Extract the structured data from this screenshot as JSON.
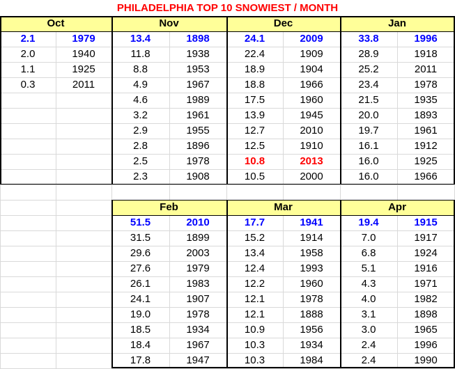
{
  "title": "PHILADELPHIA TOP 10 SNOWIEST / MONTH",
  "colors": {
    "header_fill": "#ffff99",
    "highlight_first": "#0000ff",
    "highlight_recent": "#ff0000",
    "title": "#ff0000"
  },
  "months": [
    {
      "name": "Oct",
      "rows": [
        {
          "amt": "2.1",
          "yr": "1979",
          "style": "blue"
        },
        {
          "amt": "2.0",
          "yr": "1940"
        },
        {
          "amt": "1.1",
          "yr": "1925"
        },
        {
          "amt": "0.3",
          "yr": "2011"
        }
      ]
    },
    {
      "name": "Nov",
      "rows": [
        {
          "amt": "13.4",
          "yr": "1898",
          "style": "blue"
        },
        {
          "amt": "11.8",
          "yr": "1938"
        },
        {
          "amt": "8.8",
          "yr": "1953"
        },
        {
          "amt": "4.9",
          "yr": "1967"
        },
        {
          "amt": "4.6",
          "yr": "1989"
        },
        {
          "amt": "3.2",
          "yr": "1961"
        },
        {
          "amt": "2.9",
          "yr": "1955"
        },
        {
          "amt": "2.8",
          "yr": "1896"
        },
        {
          "amt": "2.5",
          "yr": "1978"
        },
        {
          "amt": "2.3",
          "yr": "1908"
        }
      ]
    },
    {
      "name": "Dec",
      "rows": [
        {
          "amt": "24.1",
          "yr": "2009",
          "style": "blue"
        },
        {
          "amt": "22.4",
          "yr": "1909"
        },
        {
          "amt": "18.9",
          "yr": "1904"
        },
        {
          "amt": "18.8",
          "yr": "1966"
        },
        {
          "amt": "17.5",
          "yr": "1960"
        },
        {
          "amt": "13.9",
          "yr": "1945"
        },
        {
          "amt": "12.7",
          "yr": "2010"
        },
        {
          "amt": "12.5",
          "yr": "1910"
        },
        {
          "amt": "10.8",
          "yr": "2013",
          "style": "red"
        },
        {
          "amt": "10.5",
          "yr": "2000"
        }
      ]
    },
    {
      "name": "Jan",
      "rows": [
        {
          "amt": "33.8",
          "yr": "1996",
          "style": "blue"
        },
        {
          "amt": "28.9",
          "yr": "1918"
        },
        {
          "amt": "25.2",
          "yr": "2011"
        },
        {
          "amt": "23.4",
          "yr": "1978"
        },
        {
          "amt": "21.5",
          "yr": "1935"
        },
        {
          "amt": "20.0",
          "yr": "1893"
        },
        {
          "amt": "19.7",
          "yr": "1961"
        },
        {
          "amt": "16.1",
          "yr": "1912"
        },
        {
          "amt": "16.0",
          "yr": "1925"
        },
        {
          "amt": "16.0",
          "yr": "1966"
        }
      ]
    },
    {
      "name": "Feb",
      "rows": [
        {
          "amt": "51.5",
          "yr": "2010",
          "style": "blue"
        },
        {
          "amt": "31.5",
          "yr": "1899"
        },
        {
          "amt": "29.6",
          "yr": "2003"
        },
        {
          "amt": "27.6",
          "yr": "1979"
        },
        {
          "amt": "26.1",
          "yr": "1983"
        },
        {
          "amt": "24.1",
          "yr": "1907"
        },
        {
          "amt": "19.0",
          "yr": "1978"
        },
        {
          "amt": "18.5",
          "yr": "1934"
        },
        {
          "amt": "18.4",
          "yr": "1967"
        },
        {
          "amt": "17.8",
          "yr": "1947"
        }
      ]
    },
    {
      "name": "Mar",
      "rows": [
        {
          "amt": "17.7",
          "yr": "1941",
          "style": "blue"
        },
        {
          "amt": "15.2",
          "yr": "1914"
        },
        {
          "amt": "13.4",
          "yr": "1958"
        },
        {
          "amt": "12.4",
          "yr": "1993"
        },
        {
          "amt": "12.2",
          "yr": "1960"
        },
        {
          "amt": "12.1",
          "yr": "1978"
        },
        {
          "amt": "12.1",
          "yr": "1888"
        },
        {
          "amt": "10.9",
          "yr": "1956"
        },
        {
          "amt": "10.3",
          "yr": "1934"
        },
        {
          "amt": "10.3",
          "yr": "1984"
        }
      ]
    },
    {
      "name": "Apr",
      "rows": [
        {
          "amt": "19.4",
          "yr": "1915",
          "style": "blue"
        },
        {
          "amt": "7.0",
          "yr": "1917"
        },
        {
          "amt": "6.8",
          "yr": "1924"
        },
        {
          "amt": "5.1",
          "yr": "1916"
        },
        {
          "amt": "4.3",
          "yr": "1971"
        },
        {
          "amt": "4.0",
          "yr": "1982"
        },
        {
          "amt": "3.1",
          "yr": "1898"
        },
        {
          "amt": "3.0",
          "yr": "1965"
        },
        {
          "amt": "2.4",
          "yr": "1996"
        },
        {
          "amt": "2.4",
          "yr": "1990"
        }
      ]
    }
  ]
}
